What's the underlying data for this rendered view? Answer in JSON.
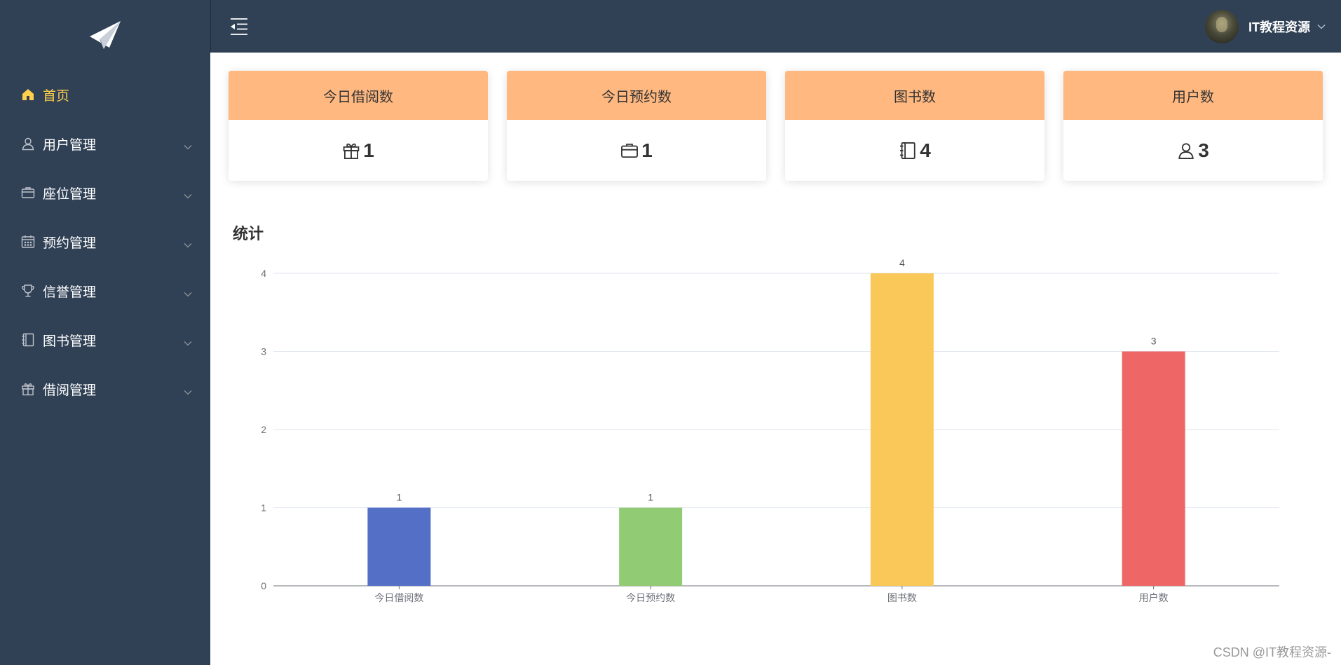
{
  "sidebar": {
    "logo": "paper-plane-icon",
    "items": [
      {
        "label": "首页",
        "icon": "home-icon",
        "active": true
      },
      {
        "label": "用户管理",
        "icon": "user-icon"
      },
      {
        "label": "座位管理",
        "icon": "briefcase-icon"
      },
      {
        "label": "预约管理",
        "icon": "calendar-icon"
      },
      {
        "label": "信誉管理",
        "icon": "trophy-icon"
      },
      {
        "label": "图书管理",
        "icon": "notebook-icon"
      },
      {
        "label": "借阅管理",
        "icon": "gift-icon"
      }
    ]
  },
  "header": {
    "username": "IT教程资源"
  },
  "cards": [
    {
      "title": "今日借阅数",
      "value": "1",
      "icon": "gift-icon"
    },
    {
      "title": "今日预约数",
      "value": "1",
      "icon": "briefcase-icon"
    },
    {
      "title": "图书数",
      "value": "4",
      "icon": "notebook-icon"
    },
    {
      "title": "用户数",
      "value": "3",
      "icon": "user-icon"
    }
  ],
  "stats": {
    "title": "统计"
  },
  "chart_data": {
    "type": "bar",
    "categories": [
      "今日借阅数",
      "今日预约数",
      "图书数",
      "用户数"
    ],
    "values": [
      1,
      1,
      4,
      3
    ],
    "colors": [
      "#5470c6",
      "#91cc75",
      "#fac858",
      "#ee6666"
    ],
    "ylim": [
      0,
      4
    ],
    "yticks": [
      0,
      1,
      2,
      3,
      4
    ],
    "grid": true
  },
  "colors": {
    "sidebar_bg": "#304156",
    "active": "#ffd04b",
    "card_head": "#ffb880"
  },
  "watermark": "CSDN @IT教程资源-"
}
